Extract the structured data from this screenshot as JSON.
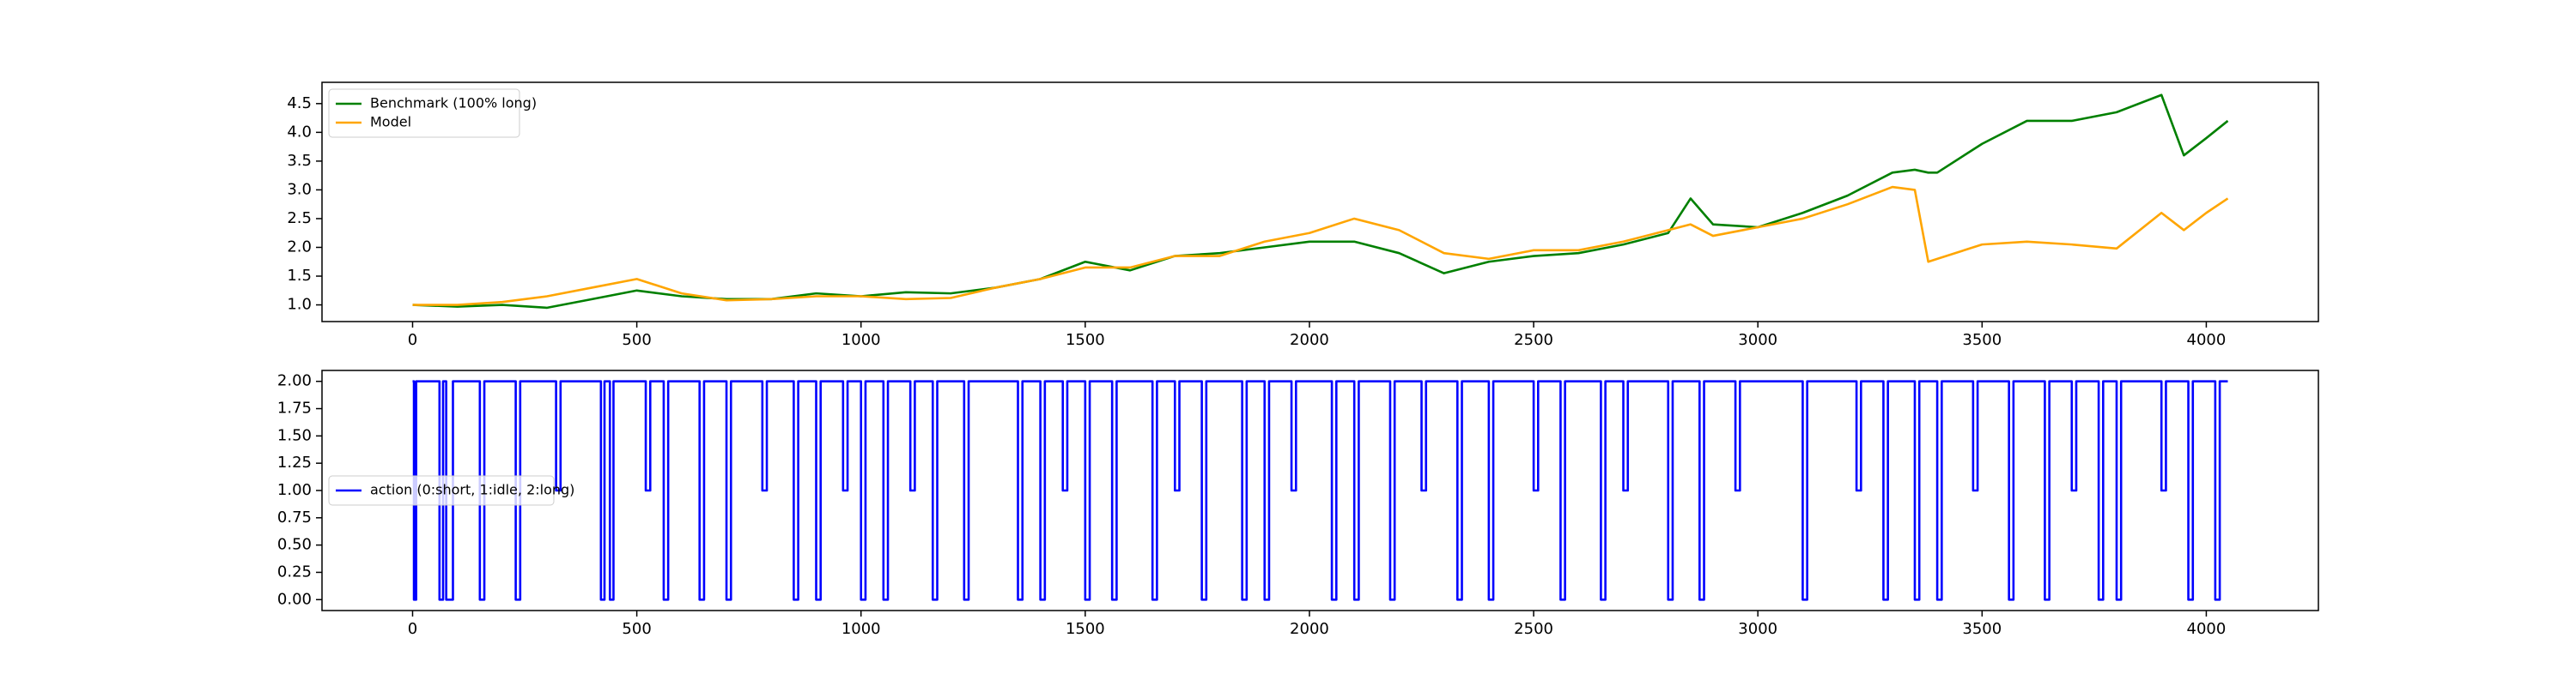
{
  "chart_data": [
    {
      "type": "line",
      "x": [
        0,
        100,
        200,
        300,
        400,
        500,
        600,
        700,
        800,
        900,
        1000,
        1100,
        1200,
        1300,
        1400,
        1500,
        1600,
        1700,
        1800,
        1900,
        2000,
        2100,
        2200,
        2300,
        2400,
        2500,
        2600,
        2700,
        2800,
        2850,
        2900,
        3000,
        3100,
        3200,
        3300,
        3350,
        3380,
        3400,
        3500,
        3600,
        3700,
        3800,
        3900,
        3950,
        4000,
        4048
      ],
      "series": [
        {
          "name": "Benchmark (100% long)",
          "color": "#008000",
          "values": [
            1.0,
            0.97,
            1.0,
            0.95,
            1.1,
            1.25,
            1.15,
            1.1,
            1.1,
            1.2,
            1.15,
            1.22,
            1.2,
            1.3,
            1.45,
            1.75,
            1.6,
            1.85,
            1.9,
            2.0,
            2.1,
            2.1,
            1.9,
            1.55,
            1.75,
            1.85,
            1.9,
            2.05,
            2.25,
            2.85,
            2.4,
            2.35,
            2.6,
            2.9,
            3.3,
            3.35,
            3.3,
            3.3,
            3.8,
            4.2,
            4.2,
            4.35,
            4.65,
            3.6,
            3.9,
            4.2
          ]
        },
        {
          "name": "Model",
          "color": "#ffa500",
          "values": [
            1.0,
            1.0,
            1.05,
            1.15,
            1.3,
            1.45,
            1.2,
            1.08,
            1.1,
            1.15,
            1.15,
            1.1,
            1.12,
            1.3,
            1.45,
            1.65,
            1.65,
            1.85,
            1.85,
            2.1,
            2.25,
            2.5,
            2.3,
            1.9,
            1.8,
            1.95,
            1.95,
            2.1,
            2.3,
            2.4,
            2.2,
            2.35,
            2.5,
            2.75,
            3.05,
            3.0,
            1.75,
            1.8,
            2.05,
            2.1,
            2.05,
            1.98,
            2.6,
            2.3,
            2.6,
            2.85
          ]
        }
      ],
      "xlim": [
        -202,
        4250
      ],
      "ylim": [
        0.71,
        4.87
      ],
      "xticks": [
        0,
        500,
        1000,
        1500,
        2000,
        2500,
        3000,
        3500,
        4000
      ],
      "yticks": [
        {
          "value": 1.0,
          "label": "1.0"
        },
        {
          "value": 1.5,
          "label": "1.5"
        },
        {
          "value": 2.0,
          "label": "2.0"
        },
        {
          "value": 2.5,
          "label": "2.5"
        },
        {
          "value": 3.0,
          "label": "3.0"
        },
        {
          "value": 3.5,
          "label": "3.5"
        },
        {
          "value": 4.0,
          "label": "4.0"
        },
        {
          "value": 4.5,
          "label": "4.5"
        }
      ],
      "legend": "upper left"
    },
    {
      "type": "step",
      "x": [
        0,
        3,
        8,
        60,
        68,
        75,
        90,
        150,
        160,
        230,
        240,
        320,
        330,
        420,
        428,
        440,
        448,
        520,
        530,
        560,
        570,
        640,
        650,
        700,
        710,
        780,
        790,
        850,
        860,
        900,
        910,
        960,
        970,
        1000,
        1010,
        1050,
        1060,
        1110,
        1120,
        1160,
        1170,
        1230,
        1240,
        1350,
        1360,
        1400,
        1410,
        1450,
        1460,
        1500,
        1510,
        1560,
        1570,
        1650,
        1660,
        1700,
        1710,
        1760,
        1770,
        1850,
        1860,
        1900,
        1910,
        1960,
        1970,
        2050,
        2060,
        2100,
        2110,
        2180,
        2190,
        2250,
        2260,
        2330,
        2340,
        2400,
        2410,
        2500,
        2510,
        2560,
        2570,
        2650,
        2660,
        2700,
        2710,
        2800,
        2810,
        2870,
        2880,
        2950,
        2960,
        3100,
        3110,
        3220,
        3230,
        3280,
        3290,
        3350,
        3360,
        3400,
        3410,
        3480,
        3490,
        3560,
        3570,
        3640,
        3650,
        3700,
        3710,
        3760,
        3770,
        3800,
        3810,
        3900,
        3910,
        3960,
        3970,
        4020,
        4030,
        4048
      ],
      "series": [
        {
          "name": "action (0:short, 1:idle, 2:long)",
          "color": "#0000ff",
          "values": [
            2,
            0,
            2,
            0,
            2,
            0,
            2,
            0,
            2,
            0,
            2,
            1,
            2,
            0,
            2,
            0,
            2,
            1,
            2,
            0,
            2,
            0,
            2,
            0,
            2,
            1,
            2,
            0,
            2,
            0,
            2,
            1,
            2,
            0,
            2,
            0,
            2,
            1,
            2,
            0,
            2,
            0,
            2,
            0,
            2,
            0,
            2,
            1,
            2,
            0,
            2,
            0,
            2,
            0,
            2,
            1,
            2,
            0,
            2,
            0,
            2,
            0,
            2,
            1,
            2,
            0,
            2,
            0,
            2,
            0,
            2,
            1,
            2,
            0,
            2,
            0,
            2,
            1,
            2,
            0,
            2,
            0,
            2,
            1,
            2,
            0,
            2,
            0,
            2,
            1,
            2,
            0,
            2,
            1,
            2,
            0,
            2,
            0,
            2,
            0,
            2,
            1,
            2,
            0,
            2,
            0,
            2,
            1,
            2,
            0,
            2,
            0,
            2,
            1,
            2,
            0,
            2,
            0,
            2,
            2
          ]
        }
      ],
      "xlim": [
        -202,
        4250
      ],
      "ylim": [
        -0.1,
        2.1
      ],
      "xticks": [
        0,
        500,
        1000,
        1500,
        2000,
        2500,
        3000,
        3500,
        4000
      ],
      "yticks": [
        {
          "value": 0,
          "label": "0.00"
        },
        {
          "value": 0.25,
          "label": "0.25"
        },
        {
          "value": 0.5,
          "label": "0.50"
        },
        {
          "value": 0.75,
          "label": "0.75"
        },
        {
          "value": 1,
          "label": "1.00"
        },
        {
          "value": 1.25,
          "label": "1.25"
        },
        {
          "value": 1.5,
          "label": "1.50"
        },
        {
          "value": 1.75,
          "label": "1.75"
        },
        {
          "value": 2,
          "label": "2.00"
        }
      ],
      "legend": "center left"
    }
  ]
}
